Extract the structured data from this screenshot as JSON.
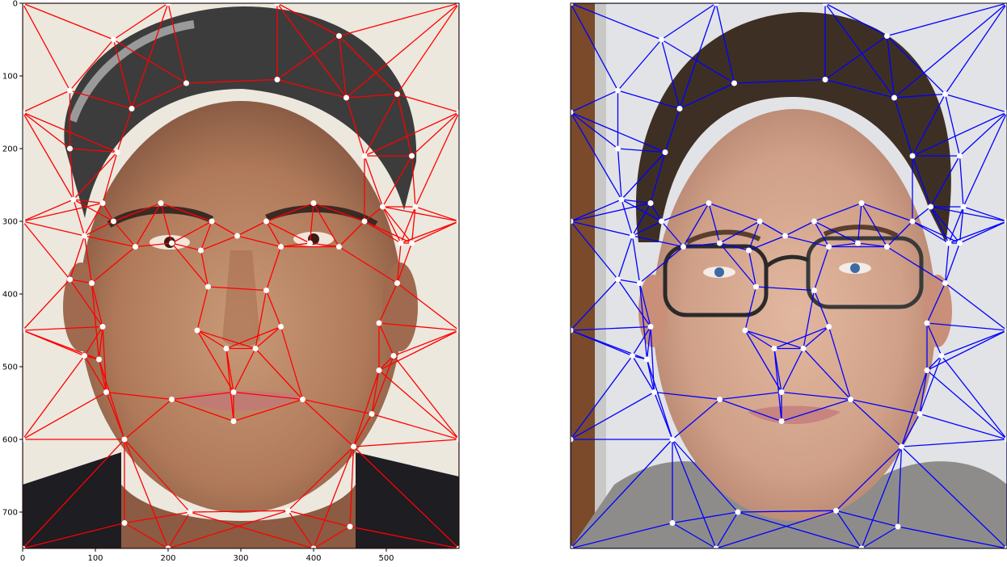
{
  "figure": {
    "panels": [
      {
        "name": "left-face",
        "photo_description_color_hair": "#4a4a4a",
        "mesh_color": "#ff0000",
        "landmark_color": "#ffffff",
        "background_color": "#ece8de",
        "x_ticks": [
          "0",
          "100",
          "200",
          "300",
          "400",
          "500"
        ],
        "y_ticks": [
          "0",
          "100",
          "200",
          "300",
          "400",
          "500",
          "600",
          "700"
        ]
      },
      {
        "name": "right-face",
        "mesh_color": "#0000ff",
        "landmark_color": "#ffffff",
        "background_color": "#dcdcdc"
      }
    ]
  },
  "chart_data": [
    {
      "type": "scatter",
      "title": "",
      "xlabel": "",
      "ylabel": "",
      "xlim": [
        0,
        600
      ],
      "ylim": [
        750,
        0
      ],
      "x_ticks": [
        0,
        100,
        200,
        300,
        400,
        500
      ],
      "y_ticks": [
        0,
        100,
        200,
        300,
        400,
        500,
        600,
        700
      ],
      "grid": false,
      "series": [
        {
          "points": [
            [
              0,
              0
            ],
            [
              200,
              0
            ],
            [
              350,
              0
            ],
            [
              600,
              0
            ],
            [
              125,
              50
            ],
            [
              435,
              45
            ],
            [
              65,
              120
            ],
            [
              225,
              110
            ],
            [
              350,
              105
            ],
            [
              445,
              130
            ],
            [
              515,
              125
            ],
            [
              150,
              145
            ],
            [
              0,
              150
            ],
            [
              600,
              150
            ],
            [
              65,
              200
            ],
            [
              130,
              205
            ],
            [
              470,
              210
            ],
            [
              535,
              210
            ],
            [
              70,
              270
            ],
            [
              110,
              275
            ],
            [
              190,
              275
            ],
            [
              400,
              275
            ],
            [
              495,
              280
            ],
            [
              540,
              280
            ],
            [
              0,
              300
            ],
            [
              600,
              300
            ],
            [
              125,
              300
            ],
            [
              260,
              300
            ],
            [
              335,
              300
            ],
            [
              470,
              300
            ],
            [
              85,
              320
            ],
            [
              295,
              320
            ],
            [
              155,
              335
            ],
            [
              205,
              330
            ],
            [
              245,
              340
            ],
            [
              355,
              335
            ],
            [
              395,
              330
            ],
            [
              435,
              335
            ],
            [
              520,
              330
            ],
            [
              535,
              330
            ],
            [
              65,
              380
            ],
            [
              95,
              385
            ],
            [
              255,
              390
            ],
            [
              335,
              395
            ],
            [
              515,
              385
            ],
            [
              110,
              445
            ],
            [
              240,
              450
            ],
            [
              355,
              445
            ],
            [
              490,
              440
            ],
            [
              0,
              450
            ],
            [
              600,
              450
            ],
            [
              85,
              485
            ],
            [
              105,
              490
            ],
            [
              280,
              475
            ],
            [
              320,
              475
            ],
            [
              510,
              485
            ],
            [
              490,
              505
            ],
            [
              115,
              535
            ],
            [
              205,
              545
            ],
            [
              290,
              535
            ],
            [
              385,
              545
            ],
            [
              480,
              565
            ],
            [
              290,
              575
            ],
            [
              0,
              600
            ],
            [
              600,
              600
            ],
            [
              140,
              600
            ],
            [
              455,
              610
            ],
            [
              230,
              700
            ],
            [
              365,
              698
            ],
            [
              140,
              715
            ],
            [
              450,
              720
            ],
            [
              0,
              750
            ],
            [
              200,
              750
            ],
            [
              400,
              750
            ],
            [
              600,
              750
            ]
          ]
        }
      ]
    },
    {
      "type": "scatter",
      "title": "",
      "xlabel": "",
      "ylabel": "",
      "grid": false,
      "series": [
        {
          "points": []
        }
      ]
    }
  ]
}
